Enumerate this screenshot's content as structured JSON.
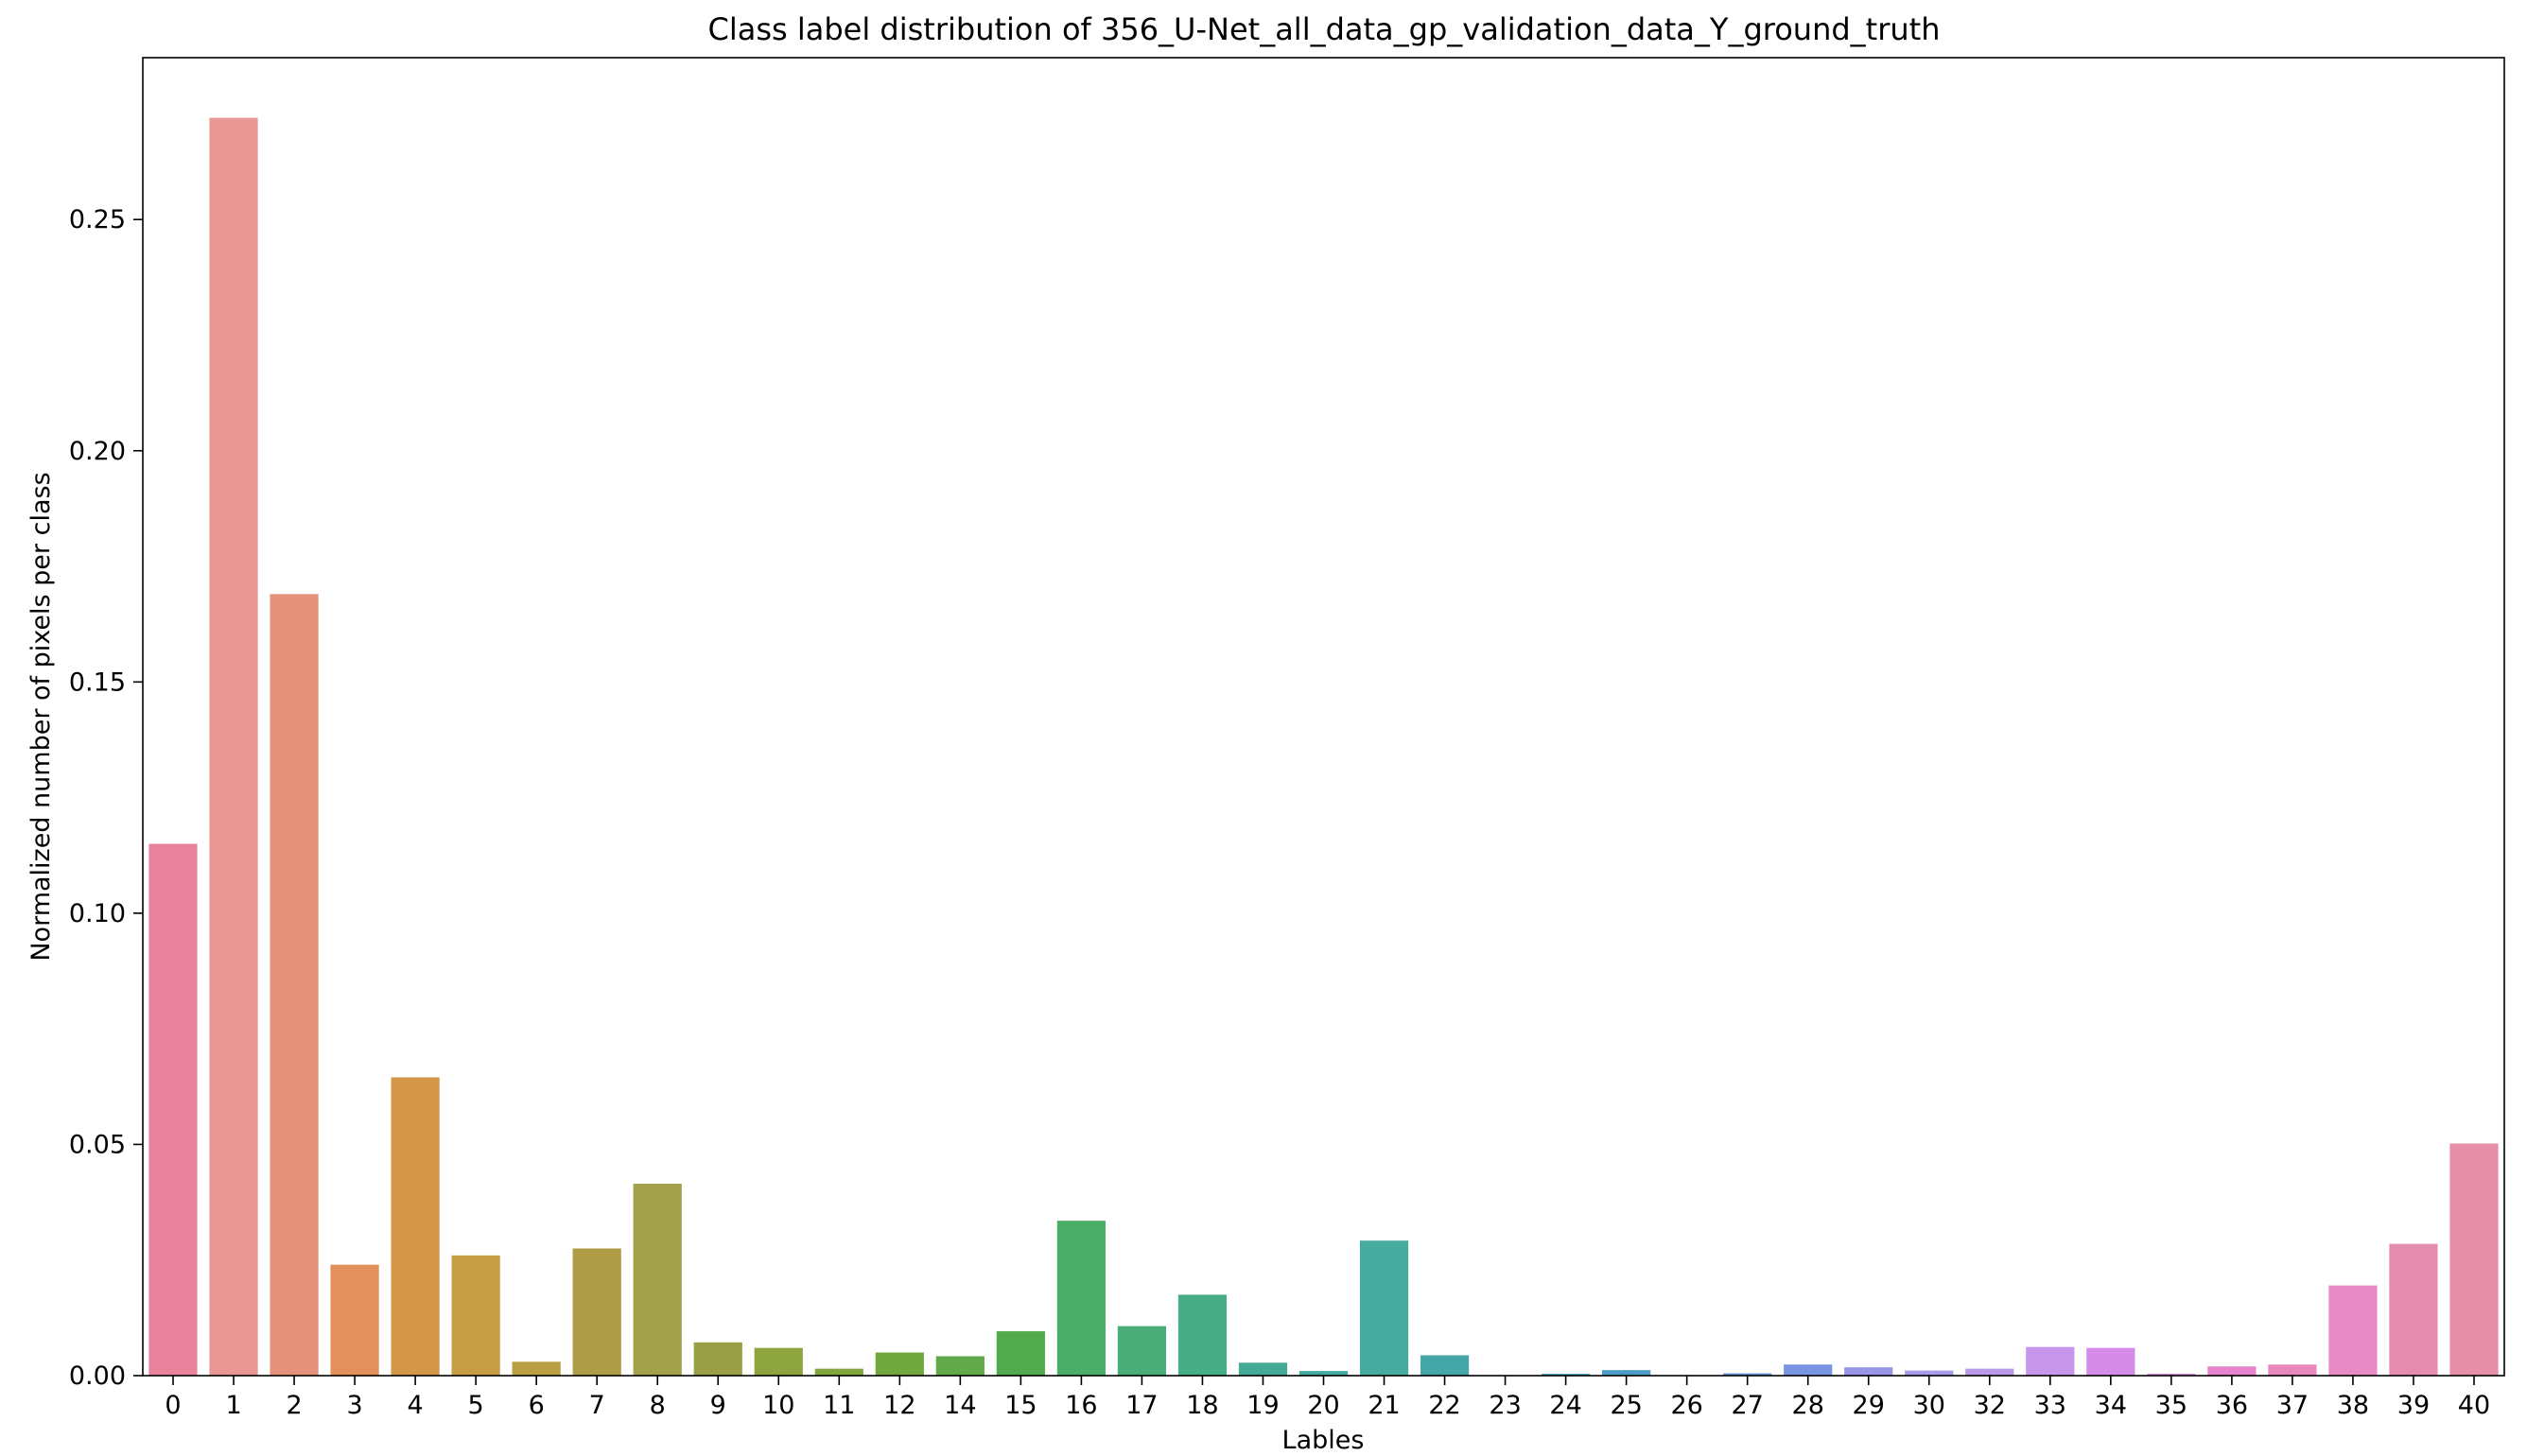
{
  "chart_data": {
    "type": "bar",
    "title": "Class label distribution of 356_U-Net_all_data_gp_validation_data_Y_ground_truth",
    "xlabel": "Lables",
    "ylabel": "Normalized number of pixels per class",
    "ylim": [
      0,
      0.285
    ],
    "yticks": [
      0.0,
      0.05,
      0.1,
      0.15,
      0.2,
      0.25
    ],
    "ytick_labels": [
      "0.00",
      "0.05",
      "0.10",
      "0.15",
      "0.20",
      "0.25"
    ],
    "grid": false,
    "categories": [
      "0",
      "1",
      "2",
      "3",
      "4",
      "5",
      "6",
      "7",
      "8",
      "9",
      "10",
      "11",
      "12",
      "14",
      "15",
      "16",
      "17",
      "18",
      "19",
      "20",
      "21",
      "22",
      "23",
      "24",
      "25",
      "26",
      "27",
      "28",
      "29",
      "30",
      "32",
      "33",
      "34",
      "35",
      "36",
      "37",
      "38",
      "39",
      "40"
    ],
    "values": [
      0.115,
      0.272,
      0.169,
      0.024,
      0.0645,
      0.026,
      0.003,
      0.0275,
      0.0415,
      0.0072,
      0.006,
      0.0015,
      0.005,
      0.0042,
      0.0096,
      0.0335,
      0.0107,
      0.0175,
      0.0028,
      0.001,
      0.0292,
      0.0044,
      0.0,
      0.0004,
      0.0012,
      0.0,
      0.0005,
      0.0024,
      0.0018,
      0.0011,
      0.0015,
      0.0062,
      0.006,
      0.0004,
      0.002,
      0.0024,
      0.0195,
      0.0285,
      0.0502
    ],
    "colors": [
      "#e8829c",
      "#e99794",
      "#e6917c",
      "#e3905d",
      "#d49749",
      "#c69d43",
      "#b99f41",
      "#ae9c46",
      "#a3a14a",
      "#989f44",
      "#8ea43f",
      "#82a63c",
      "#71a83d",
      "#62a94a",
      "#51ab4d",
      "#4bae68",
      "#48ad79",
      "#47ad87",
      "#45aa95",
      "#46aa9d",
      "#47ab9f",
      "#45a6aa",
      "#45a3b4",
      "#47a1bd",
      "#4a9dc4",
      "#5398cd",
      "#6595d6",
      "#7994e0",
      "#9896e6",
      "#a99be9",
      "#b89ae9",
      "#c696ea",
      "#d58ce9",
      "#e082df",
      "#e685cd",
      "#e888bc",
      "#e68bc3",
      "#e48daf",
      "#e58fa9"
    ]
  }
}
